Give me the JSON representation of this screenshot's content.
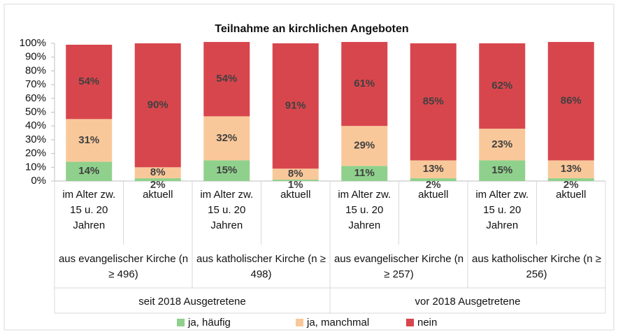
{
  "chart_data": {
    "type": "stacked_bar",
    "title": "Teilnahme an kirchlichen Angeboten",
    "categories": [
      "im Alter zw. 15 u. 20 Jahren",
      "aktuell",
      "im Alter zw. 15 u. 20 Jahren",
      "aktuell",
      "im Alter zw. 15 u. 20 Jahren",
      "aktuell",
      "im Alter zw. 15 u. 20 Jahren",
      "aktuell"
    ],
    "groups": [
      "aus evangelischer Kirche (n ≥ 496)",
      "aus katholischer Kirche (n ≥ 498)",
      "aus evangelischer Kirche (n ≥ 257)",
      "aus katholischer Kirche (n ≥ 256)"
    ],
    "outer_groups": [
      "seit 2018 Ausgetretene",
      "vor 2018 Ausgetretene"
    ],
    "series": [
      {
        "name": "ja, häufig",
        "color": "#8fd18c",
        "values": [
          14,
          2,
          15,
          1,
          11,
          2,
          15,
          2
        ],
        "value_labels": [
          "14%",
          "2%",
          "15%",
          "1%",
          "11%",
          "2%",
          "15%",
          "2%"
        ]
      },
      {
        "name": "ja, manchmal",
        "color": "#f9c89a",
        "values": [
          31,
          8,
          32,
          8,
          29,
          13,
          23,
          13
        ],
        "value_labels": [
          "31%",
          "8%",
          "32%",
          "8%",
          "29%",
          "13%",
          "23%",
          "13%"
        ]
      },
      {
        "name": "nein",
        "color": "#d8464d",
        "values": [
          54,
          90,
          54,
          91,
          61,
          85,
          62,
          86
        ],
        "value_labels": [
          "54%",
          "90%",
          "54%",
          "91%",
          "61%",
          "85%",
          "62%",
          "86%"
        ]
      }
    ],
    "ylim": [
      0,
      100
    ],
    "yticks": [
      {
        "value": 0,
        "label": "0%"
      },
      {
        "value": 10,
        "label": "10%"
      },
      {
        "value": 20,
        "label": "20%"
      },
      {
        "value": 30,
        "label": "30%"
      },
      {
        "value": 40,
        "label": "40%"
      },
      {
        "value": 50,
        "label": "50%"
      },
      {
        "value": 60,
        "label": "60%"
      },
      {
        "value": 70,
        "label": "70%"
      },
      {
        "value": 80,
        "label": "80%"
      },
      {
        "value": 90,
        "label": "90%"
      },
      {
        "value": 100,
        "label": "100%"
      }
    ],
    "grid": false,
    "legend": "bottom"
  }
}
